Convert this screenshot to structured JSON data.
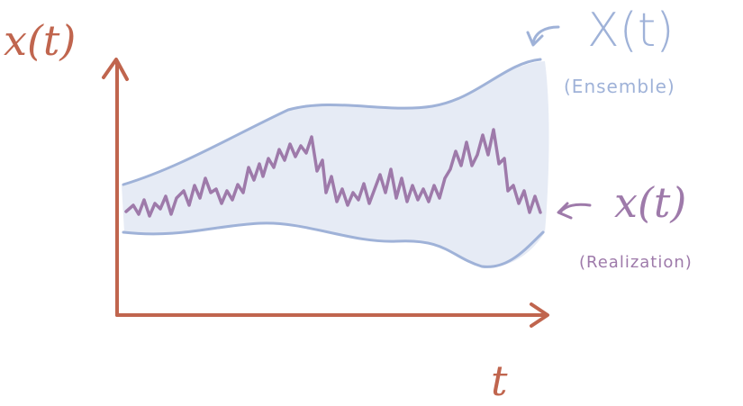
{
  "labels": {
    "y_axis": "x(t)",
    "x_axis": "t",
    "ensemble": "X(t)",
    "ensemble_sub": "(Ensemble)",
    "realization": "x(t)",
    "realization_sub": "(Realization)"
  },
  "colors": {
    "axis": "#c0654e",
    "band_fill": "#e6ebf5",
    "band_edge": "#9fb2d8",
    "realization_line": "#9e7aaa",
    "background": "#ffffff"
  }
}
